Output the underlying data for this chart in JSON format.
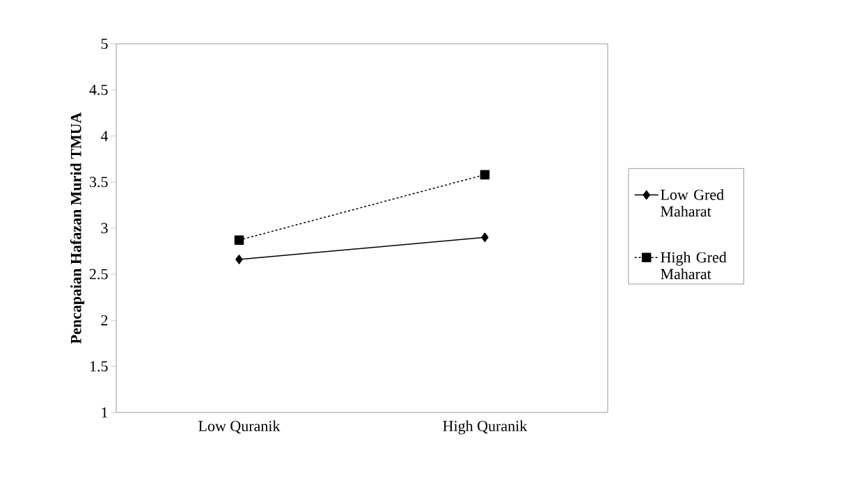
{
  "chart_data": {
    "type": "line",
    "ylabel": "Pencapaian Hafazan Murid TMUA",
    "categories": [
      "Low Quranik",
      "High Quranik"
    ],
    "series": [
      {
        "name": "Low Gred Maharat",
        "color": "#000000",
        "values": [
          2.66,
          2.9
        ],
        "marker": "diamond",
        "line_style": "solid"
      },
      {
        "name": "High Gred Maharat",
        "color": "#000000",
        "values": [
          2.87,
          3.58
        ],
        "marker": "square",
        "line_style": "dashed"
      }
    ],
    "ylim": [
      1,
      5
    ],
    "yticks": [
      1,
      1.5,
      2,
      2.5,
      3,
      3.5,
      4,
      4.5,
      5
    ],
    "grid": false,
    "legend": "right"
  }
}
